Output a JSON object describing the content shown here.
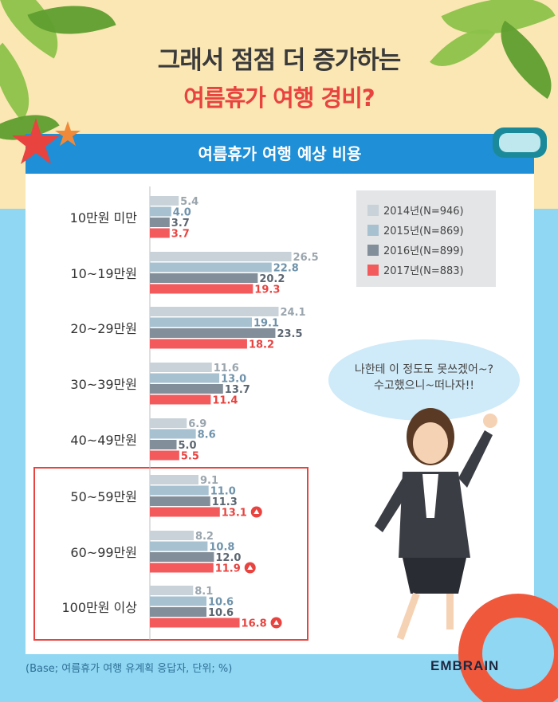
{
  "title": {
    "line1": "그래서 점점 더 증가하는",
    "line2": "여름휴가 여행 경비?"
  },
  "panel_header": "여름휴가 여행 예상 비용",
  "speech_bubble": {
    "line1": "나한테 이 정도도 못쓰겠어~?",
    "line2": "수고했으니~떠나자!!"
  },
  "footnote": "(Base; 여름휴가 여행 유계획 응답자, 단위; %)",
  "brand": "EMBRAIN",
  "colors": {
    "s2014": "#c8d2d8",
    "s2015": "#a7c1d1",
    "s2016": "#828e99",
    "s2017": "#f25a5c",
    "accent": "#e8433f",
    "header": "#1f8fd7"
  },
  "chart_data": {
    "type": "bar",
    "orientation": "horizontal",
    "title": "여름휴가 여행 예상 비용",
    "categories": [
      "10만원 미만",
      "10~19만원",
      "20~29만원",
      "30~39만원",
      "40~49만원",
      "50~59만원",
      "60~99만원",
      "100만원 이상"
    ],
    "series": [
      {
        "name": "2014년(N=946)",
        "values": [
          5.4,
          26.5,
          24.1,
          11.6,
          6.9,
          9.1,
          8.2,
          8.1
        ]
      },
      {
        "name": "2015년(N=869)",
        "values": [
          4.0,
          22.8,
          19.1,
          13.0,
          8.6,
          11.0,
          10.8,
          10.6
        ]
      },
      {
        "name": "2016년(N=899)",
        "values": [
          3.7,
          20.2,
          23.5,
          13.7,
          5.0,
          11.3,
          12.0,
          10.6
        ]
      },
      {
        "name": "2017년(N=883)",
        "values": [
          3.7,
          19.3,
          18.2,
          11.4,
          5.5,
          13.1,
          11.9,
          16.8
        ]
      }
    ],
    "highlighted_categories": [
      "50~59만원",
      "60~99만원",
      "100만원 이상"
    ],
    "increase_markers": [
      "50~59만원",
      "60~99만원",
      "100만원 이상"
    ],
    "legend_position": "top-right",
    "grid": false
  }
}
